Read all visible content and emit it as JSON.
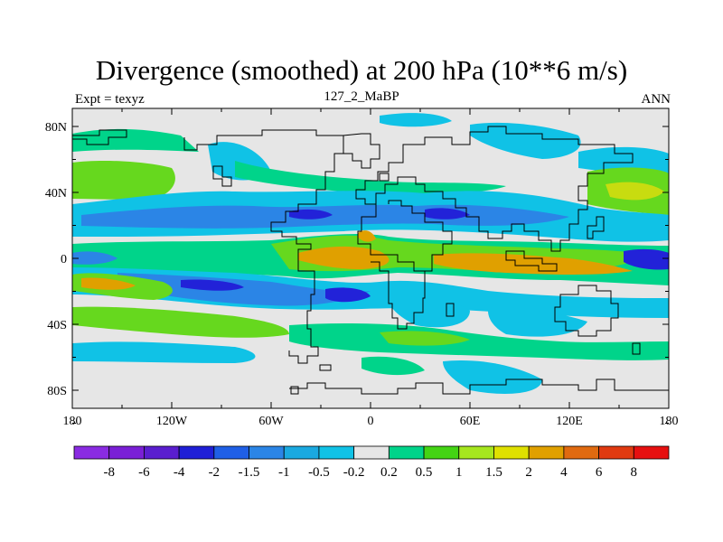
{
  "title": "Divergence (smoothed) at 200 hPa (10**6 m/s)",
  "subtitle_left": "Expt = texyz",
  "subtitle_center": "127_2_MaBP",
  "subtitle_right": "ANN",
  "lat_ticks": [
    "80N",
    "40N",
    "0",
    "40S",
    "80S"
  ],
  "lon_ticks": [
    "180",
    "120W",
    "60W",
    "0",
    "60E",
    "120E",
    "180"
  ],
  "colorbar": {
    "colors": [
      "#8a2be2",
      "#7a1fd6",
      "#5a1ecf",
      "#1f1fd6",
      "#1f5fe6",
      "#2b85e6",
      "#1aa9e0",
      "#10c2e6",
      "#e6e6e6",
      "#00d48a",
      "#44d414",
      "#a6e61e",
      "#dfe000",
      "#e0a000",
      "#e06a10",
      "#e03a10",
      "#e61010"
    ],
    "labels": [
      "-8",
      "-6",
      "-4",
      "-2",
      "-1.5",
      "-1",
      "-0.5",
      "-0.2",
      "0.2",
      "0.5",
      "1",
      "1.5",
      "2",
      "4",
      "6",
      "8"
    ]
  },
  "map_colors": {
    "background": "#e6e6e6",
    "strong_neg": "#2222d8",
    "mid_neg": "#2b85e6",
    "light_neg": "#10c2e6",
    "light_pos": "#00d48a",
    "mid_pos": "#66d81e",
    "pos_yellow": "#c8dc10",
    "pos_orange": "#e0a000"
  }
}
